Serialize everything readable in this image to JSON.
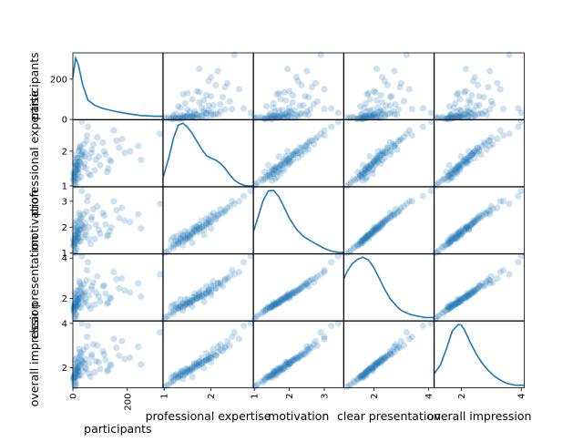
{
  "chart_data": {
    "type": "scatter",
    "title": "",
    "variables": [
      "participants",
      "professional expertise",
      "motivation",
      "clear presentation",
      "overall impression"
    ],
    "axis_ranges": [
      [
        0,
        330
      ],
      [
        0.98,
        2.9
      ],
      [
        0.98,
        3.55
      ],
      [
        0.9,
        4.2
      ],
      [
        1.1,
        4.1
      ]
    ],
    "y_ticks": [
      [
        0,
        200
      ],
      [
        1,
        2
      ],
      [
        1,
        2,
        3
      ],
      [
        2,
        4
      ],
      [
        2,
        4
      ]
    ],
    "x_ticks": [
      [
        0,
        200
      ],
      [
        1,
        2
      ],
      [
        1,
        2,
        3
      ],
      [
        2,
        4
      ],
      [
        2,
        4
      ]
    ],
    "diagonal": "kde",
    "kde": [
      {
        "x": [
          0,
          10,
          20,
          35,
          55,
          80,
          110,
          150,
          200,
          250,
          300,
          330
        ],
        "density": [
          0.65,
          0.95,
          0.85,
          0.55,
          0.3,
          0.22,
          0.17,
          0.13,
          0.09,
          0.06,
          0.05,
          0.05
        ]
      },
      {
        "x": [
          0.98,
          1.1,
          1.2,
          1.3,
          1.4,
          1.5,
          1.6,
          1.7,
          1.8,
          1.9,
          2.0,
          2.1,
          2.2,
          2.3,
          2.4,
          2.5,
          2.6,
          2.7,
          2.8,
          2.9
        ],
        "density": [
          0.15,
          0.45,
          0.75,
          0.95,
          0.98,
          0.92,
          0.82,
          0.7,
          0.58,
          0.48,
          0.44,
          0.41,
          0.36,
          0.28,
          0.18,
          0.1,
          0.05,
          0.02,
          0.01,
          0.01
        ]
      },
      {
        "x": [
          0.98,
          1.1,
          1.25,
          1.4,
          1.55,
          1.7,
          1.85,
          2.0,
          2.2,
          2.4,
          2.6,
          2.8,
          3.0,
          3.2,
          3.4,
          3.55
        ],
        "density": [
          0.35,
          0.55,
          0.82,
          0.97,
          0.98,
          0.88,
          0.72,
          0.55,
          0.38,
          0.27,
          0.2,
          0.14,
          0.08,
          0.04,
          0.02,
          0.02
        ]
      },
      {
        "x": [
          0.9,
          1.0,
          1.2,
          1.4,
          1.6,
          1.8,
          2.0,
          2.2,
          2.4,
          2.6,
          2.8,
          3.0,
          3.3,
          3.6,
          3.9,
          4.2
        ],
        "density": [
          0.65,
          0.75,
          0.88,
          0.95,
          0.98,
          0.94,
          0.82,
          0.65,
          0.48,
          0.34,
          0.24,
          0.16,
          0.1,
          0.07,
          0.05,
          0.05
        ]
      },
      {
        "x": [
          1.1,
          1.3,
          1.5,
          1.7,
          1.9,
          2.0,
          2.1,
          2.3,
          2.5,
          2.7,
          2.9,
          3.1,
          3.3,
          3.5,
          3.8,
          4.1
        ],
        "density": [
          0.22,
          0.35,
          0.6,
          0.88,
          0.98,
          0.97,
          0.9,
          0.7,
          0.52,
          0.38,
          0.27,
          0.18,
          0.12,
          0.07,
          0.04,
          0.04
        ]
      }
    ],
    "points": [
      [
        5,
        1.15,
        1.25,
        1.3,
        1.35
      ],
      [
        8,
        1.3,
        1.45,
        1.5,
        1.6
      ],
      [
        10,
        1.45,
        1.6,
        1.7,
        1.75
      ],
      [
        12,
        1.2,
        1.2,
        1.25,
        1.4
      ],
      [
        15,
        1.6,
        1.8,
        1.9,
        1.9
      ],
      [
        3,
        1.35,
        1.5,
        1.6,
        1.65
      ],
      [
        20,
        1.5,
        1.55,
        1.8,
        1.85
      ],
      [
        25,
        1.7,
        1.9,
        2.0,
        2.1
      ],
      [
        6,
        1.25,
        1.35,
        1.45,
        1.55
      ],
      [
        9,
        1.4,
        1.7,
        1.75,
        1.8
      ],
      [
        14,
        1.55,
        1.65,
        1.85,
        1.95
      ],
      [
        18,
        1.8,
        2.0,
        2.1,
        2.2
      ],
      [
        30,
        1.9,
        2.1,
        2.3,
        2.35
      ],
      [
        11,
        1.1,
        1.1,
        1.15,
        1.25
      ],
      [
        7,
        1.65,
        1.85,
        1.95,
        2.0
      ],
      [
        16,
        1.75,
        1.95,
        2.2,
        2.25
      ],
      [
        22,
        2.0,
        2.2,
        2.4,
        2.45
      ],
      [
        4,
        1.3,
        1.4,
        1.55,
        1.55
      ],
      [
        13,
        1.45,
        1.5,
        1.65,
        1.7
      ],
      [
        19,
        1.6,
        1.75,
        1.9,
        2.0
      ],
      [
        27,
        2.1,
        2.3,
        2.5,
        2.55
      ],
      [
        35,
        1.85,
        2.05,
        2.2,
        2.3
      ],
      [
        2,
        1.2,
        1.3,
        1.4,
        1.45
      ],
      [
        17,
        1.5,
        1.6,
        1.7,
        1.8
      ],
      [
        24,
        1.7,
        1.8,
        2.0,
        2.05
      ],
      [
        40,
        2.2,
        2.5,
        2.7,
        2.8
      ],
      [
        45,
        1.95,
        2.15,
        2.35,
        2.4
      ],
      [
        8,
        1.35,
        1.55,
        1.6,
        1.7
      ],
      [
        12,
        1.55,
        1.7,
        1.8,
        1.9
      ],
      [
        21,
        1.4,
        1.45,
        1.55,
        1.65
      ],
      [
        28,
        1.65,
        1.9,
        2.05,
        2.15
      ],
      [
        50,
        2.3,
        2.6,
        2.9,
        2.95
      ],
      [
        60,
        1.8,
        2.0,
        2.15,
        2.2
      ],
      [
        70,
        2.05,
        2.4,
        2.6,
        2.6
      ],
      [
        80,
        1.45,
        1.55,
        1.7,
        1.8
      ],
      [
        90,
        2.4,
        2.8,
        3.1,
        3.0
      ],
      [
        100,
        1.6,
        1.75,
        1.85,
        1.95
      ],
      [
        110,
        2.25,
        2.55,
        2.6,
        2.75
      ],
      [
        120,
        1.9,
        2.1,
        2.25,
        2.35
      ],
      [
        135,
        1.75,
        1.85,
        2.05,
        2.1
      ],
      [
        150,
        2.6,
        3.0,
        3.3,
        3.3
      ],
      [
        170,
        2.1,
        2.35,
        2.5,
        2.55
      ],
      [
        210,
        2.0,
        2.2,
        2.3,
        2.45
      ],
      [
        320,
        2.5,
        2.9,
        3.2,
        3.6
      ],
      [
        55,
        2.7,
        3.2,
        3.8,
        3.9
      ],
      [
        33,
        2.85,
        3.4,
        4.1,
        4.0
      ],
      [
        5,
        1.05,
        1.05,
        1.1,
        1.2
      ],
      [
        10,
        1.0,
        1.0,
        1.0,
        1.15
      ],
      [
        26,
        2.15,
        2.45,
        2.75,
        2.7
      ],
      [
        38,
        1.55,
        1.6,
        1.75,
        1.85
      ],
      [
        65,
        1.3,
        1.35,
        1.5,
        1.6
      ],
      [
        75,
        2.2,
        2.7,
        2.8,
        3.05
      ],
      [
        95,
        1.85,
        1.9,
        2.1,
        2.25
      ],
      [
        130,
        1.5,
        1.7,
        1.8,
        1.9
      ],
      [
        160,
        2.3,
        2.65,
        2.95,
        2.9
      ],
      [
        190,
        1.95,
        2.25,
        2.4,
        2.4
      ],
      [
        9,
        1.7,
        2.05,
        2.15,
        2.2
      ],
      [
        14,
        1.8,
        2.25,
        2.4,
        2.45
      ],
      [
        23,
        2.05,
        2.55,
        2.85,
        2.85
      ],
      [
        31,
        1.9,
        2.35,
        2.6,
        2.65
      ],
      [
        3,
        1.15,
        1.5,
        1.6,
        1.55
      ],
      [
        6,
        1.25,
        1.65,
        1.75,
        1.7
      ],
      [
        18,
        1.35,
        1.75,
        1.95,
        1.85
      ],
      [
        42,
        1.65,
        2.0,
        2.25,
        2.2
      ],
      [
        85,
        1.75,
        2.1,
        2.3,
        2.3
      ],
      [
        115,
        2.0,
        2.45,
        2.65,
        2.6
      ],
      [
        140,
        1.7,
        2.0,
        2.0,
        2.15
      ],
      [
        180,
        2.35,
        2.75,
        3.0,
        3.2
      ],
      [
        240,
        2.15,
        2.5,
        2.75,
        2.95
      ],
      [
        48,
        1.5,
        1.8,
        1.95,
        1.95
      ],
      [
        58,
        1.35,
        1.55,
        1.65,
        1.75
      ],
      [
        68,
        1.95,
        2.3,
        2.45,
        2.5
      ],
      [
        7,
        1.9,
        2.15,
        2.25,
        2.35
      ],
      [
        11,
        1.6,
        1.95,
        2.05,
        2.05
      ],
      [
        16,
        1.45,
        1.85,
        1.95,
        1.95
      ],
      [
        29,
        1.25,
        1.45,
        1.55,
        1.65
      ],
      [
        36,
        2.0,
        1.95,
        2.15,
        2.25
      ],
      [
        44,
        1.85,
        1.7,
        1.85,
        2.0
      ],
      [
        4,
        1.4,
        1.3,
        1.4,
        1.5
      ],
      [
        13,
        1.6,
        1.4,
        1.6,
        1.6
      ],
      [
        20,
        1.2,
        1.6,
        1.7,
        1.65
      ],
      [
        125,
        1.4,
        1.65,
        1.75,
        1.85
      ],
      [
        250,
        1.75,
        1.95,
        2.1,
        2.15
      ],
      [
        52,
        2.45,
        3.0,
        3.4,
        3.4
      ]
    ],
    "x_labels": [
      "participants",
      "professional expertise",
      "motivation",
      "clear presentation",
      "overall impression"
    ],
    "y_labels": [
      "participants",
      "professional expertise",
      "motivation",
      "clear presentation",
      "overall impression"
    ],
    "colors": {
      "marker": "#1f77b4",
      "line": "#1f77b4"
    }
  }
}
